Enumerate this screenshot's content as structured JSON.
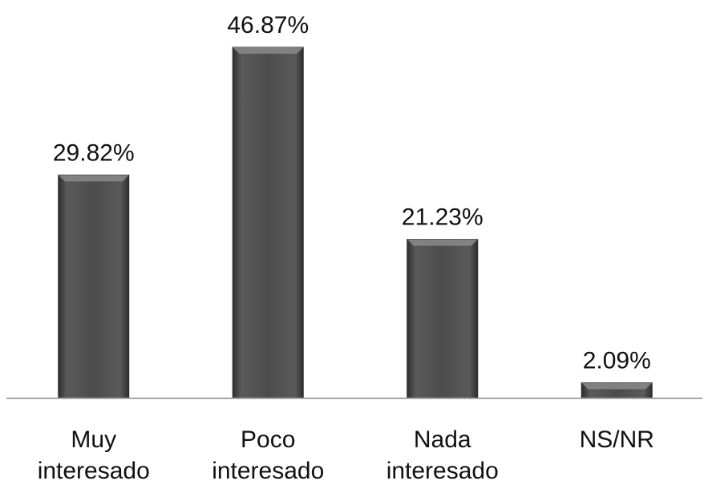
{
  "chart_data": {
    "type": "bar",
    "categories": [
      [
        "Muy",
        "interesado"
      ],
      [
        "Poco",
        "interesado"
      ],
      [
        "Nada",
        "interesado"
      ],
      [
        "NS/NR"
      ]
    ],
    "values": [
      29.82,
      46.87,
      21.23,
      2.09
    ],
    "value_labels": [
      "29.82%",
      "46.87%",
      "21.23%",
      "2.09%"
    ],
    "unit": "%",
    "ylim": [
      0,
      50
    ],
    "grid": false,
    "legend": "none",
    "bar_color": "#4a4a4a",
    "bar_edge_color": "#2b2b2b",
    "bar_highlight_color": "#8a8a8a",
    "axis_color": "#a6a6a6"
  }
}
